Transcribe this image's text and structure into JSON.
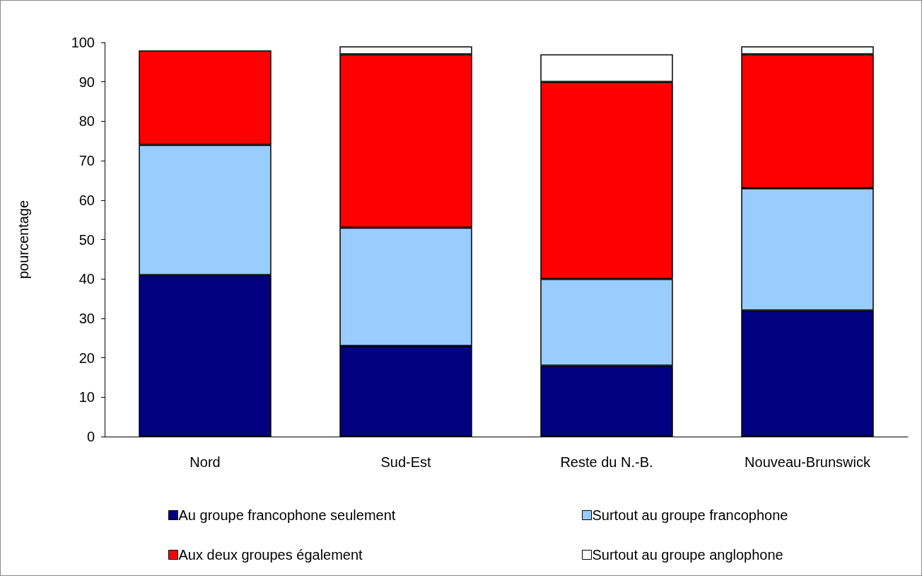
{
  "chart_data": {
    "type": "bar",
    "stacked": true,
    "ylabel": "pourcentage",
    "categories": [
      "Nord",
      "Sud-Est",
      "Reste du N.-B.",
      "Nouveau-Brunswick"
    ],
    "series": [
      {
        "name": "Au groupe francophone seulement",
        "color": "#000080",
        "values": [
          41,
          23,
          18,
          32
        ]
      },
      {
        "name": "Surtout au groupe francophone",
        "color": "#99ccff",
        "values": [
          33,
          30,
          22,
          31
        ]
      },
      {
        "name": "Aux deux groupes également",
        "color": "#ff0000",
        "values": [
          24,
          44,
          50,
          34
        ]
      },
      {
        "name": "Surtout au groupe anglophone",
        "color": "#ffffff",
        "values": [
          0,
          2,
          7,
          2
        ]
      }
    ],
    "ylim": [
      0,
      100
    ],
    "yticks": [
      0,
      10,
      20,
      30,
      40,
      50,
      60,
      70,
      80,
      90,
      100
    ],
    "grid": false,
    "legend": "bottom"
  }
}
